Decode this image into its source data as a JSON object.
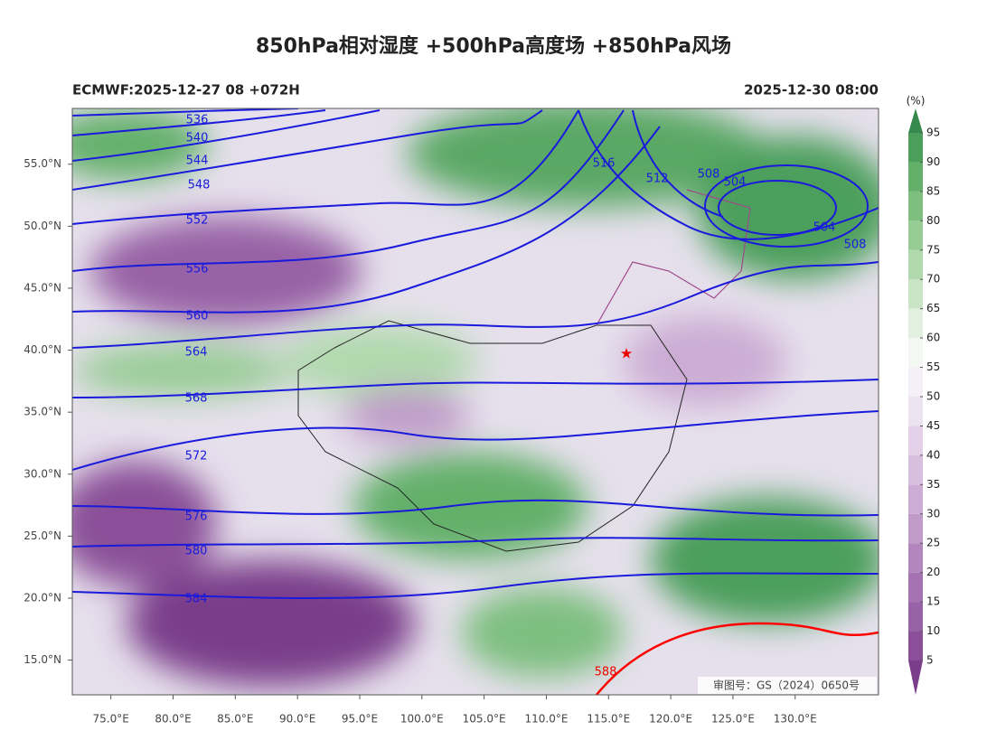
{
  "header": {
    "title": "850hPa相对湿度 +500hPa高度场 +850hPa风场",
    "left": "ECMWF:2025-12-27 08 +072H",
    "right": "2025-12-30 08:00"
  },
  "map": {
    "xlim": [
      71.9,
      136.7
    ],
    "ylim": [
      12.2,
      59.5
    ],
    "xticks": [
      {
        "value": 75,
        "label": "75.0°E"
      },
      {
        "value": 80,
        "label": "80.0°E"
      },
      {
        "value": 85,
        "label": "85.0°E"
      },
      {
        "value": 90,
        "label": "90.0°E"
      },
      {
        "value": 95,
        "label": "95.0°E"
      },
      {
        "value": 100,
        "label": "100.0°E"
      },
      {
        "value": 105,
        "label": "105.0°E"
      },
      {
        "value": 110,
        "label": "110.0°E"
      },
      {
        "value": 115,
        "label": "115.0°E"
      },
      {
        "value": 120,
        "label": "120.0°E"
      },
      {
        "value": 125,
        "label": "125.0°E"
      },
      {
        "value": 130,
        "label": "130.0°E"
      }
    ],
    "yticks": [
      {
        "value": 15,
        "label": "15.0°N"
      },
      {
        "value": 20,
        "label": "20.0°N"
      },
      {
        "value": 25,
        "label": "25.0°N"
      },
      {
        "value": 30,
        "label": "30.0°N"
      },
      {
        "value": 35,
        "label": "35.0°N"
      },
      {
        "value": 40,
        "label": "40.0°N"
      },
      {
        "value": 45,
        "label": "45.0°N"
      },
      {
        "value": 50,
        "label": "50.0°N"
      },
      {
        "value": 55,
        "label": "55.0°N"
      }
    ],
    "contour_labels": [
      536,
      540,
      544,
      548,
      552,
      556,
      560,
      564,
      568,
      572,
      576,
      580,
      584,
      588,
      516,
      512,
      508,
      504,
      504,
      508
    ],
    "note": "审图号：GS（2024）0650号"
  },
  "colorbar": {
    "unit": "(%)",
    "levels": [
      5,
      10,
      15,
      20,
      25,
      30,
      35,
      40,
      45,
      50,
      55,
      60,
      65,
      70,
      75,
      80,
      85,
      90,
      95
    ],
    "colors": [
      "#7a3d8a",
      "#8a4f98",
      "#9862a6",
      "#a673b2",
      "#b386bd",
      "#c09ac9",
      "#ccacd4",
      "#d8bfdf",
      "#e2d1e8",
      "#ece3f0",
      "#f5f0f7",
      "#f4f8f3",
      "#e1f0df",
      "#c9e5c6",
      "#b0d9ad",
      "#97cc95",
      "#7ebf80",
      "#64b06b",
      "#4c9f5b",
      "#36894c"
    ]
  }
}
